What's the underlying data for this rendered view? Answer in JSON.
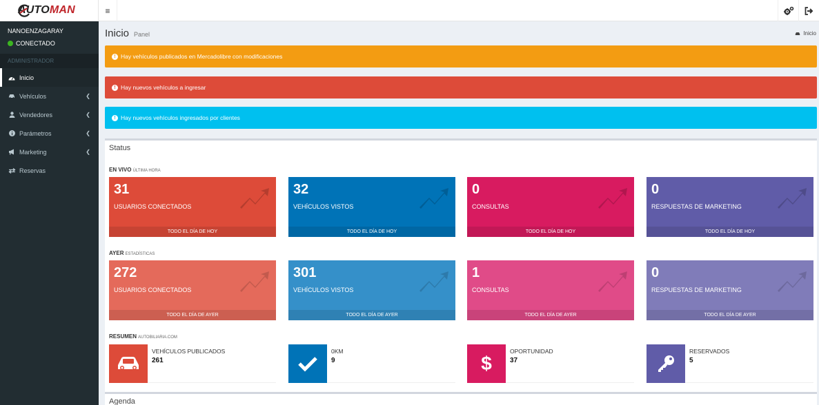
{
  "brand": {
    "logo_prefix": "AUTO",
    "logo_suffix": "MAN"
  },
  "user": {
    "name": "NANOENZAGARAY",
    "status": "CONECTADO",
    "status_color": "#3cb521"
  },
  "sidebar": {
    "header": "ADMINISTRADOR",
    "items": [
      {
        "label": "Inicio",
        "icon": "dashboard-icon"
      },
      {
        "label": "Vehículos",
        "icon": "car-icon"
      },
      {
        "label": "Vendedores",
        "icon": "user-icon"
      },
      {
        "label": "Parámetros",
        "icon": "info-icon"
      },
      {
        "label": "Marketing",
        "icon": "bullhorn-icon"
      },
      {
        "label": "Reservas",
        "icon": "exchange-icon"
      }
    ]
  },
  "page": {
    "title": "Inicio",
    "subtitle": "Panel",
    "breadcrumb": "Inicio"
  },
  "alerts": [
    {
      "text": "Hay vehículos publicados en Mercadolibre con modificaciones",
      "color": "#f39c12"
    },
    {
      "text": "Hay nuevos vehículos a ingresar",
      "color": "#dd4b39"
    },
    {
      "text": "Hay nuevos vehículos ingresados por clientes",
      "color": "#00c0ef"
    }
  ],
  "status": {
    "title": "Status",
    "live": {
      "label": "EN VIVO",
      "sub": "ÚLTIMA HORA",
      "tiles": [
        {
          "value": "31",
          "label": "USUARIOS CONECTADOS",
          "footer": "TODO EL DÍA DE HOY",
          "color": "#dd4b39"
        },
        {
          "value": "32",
          "label": "VEHÍCULOS VISTOS",
          "footer": "TODO EL DÍA DE HOY",
          "color": "#0073b7"
        },
        {
          "value": "0",
          "label": "CONSULTAS",
          "footer": "TODO EL DÍA DE HOY",
          "color": "#d81b60"
        },
        {
          "value": "0",
          "label": "RESPUESTAS DE MARKETING",
          "footer": "TODO EL DÍA DE HOY",
          "color": "#605ca8"
        }
      ]
    },
    "yesterday": {
      "label": "AYER",
      "sub": "ESTADÍSTICAS",
      "tiles": [
        {
          "value": "272",
          "label": "USUARIOS CONECTADOS",
          "footer": "TODO EL DÍA DE AYER",
          "color": "#e46a5b"
        },
        {
          "value": "301",
          "label": "VEHÍCULOS VISTOS",
          "footer": "TODO EL DÍA DE AYER",
          "color": "#3590c9"
        },
        {
          "value": "1",
          "label": "CONSULTAS",
          "footer": "TODO EL DÍA DE AYER",
          "color": "#e04b88"
        },
        {
          "value": "0",
          "label": "RESPUESTAS DE MARKETING",
          "footer": "TODO EL DÍA DE AYER",
          "color": "#807cb9"
        }
      ]
    },
    "summary": {
      "label": "RESUMEN",
      "sub": "AUTOBILIARIA.COM",
      "boxes": [
        {
          "label": "VEHÍCULOS PUBLICADOS",
          "value": "261",
          "icon": "car-icon",
          "color": "#dd4b39"
        },
        {
          "label": "0KM",
          "value": "9",
          "icon": "check-icon",
          "color": "#0073b7"
        },
        {
          "label": "OPORTUNIDAD",
          "value": "37",
          "icon": "dollar-icon",
          "color": "#d81b60"
        },
        {
          "label": "RESERVADOS",
          "value": "5",
          "icon": "key-icon",
          "color": "#605ca8"
        }
      ]
    }
  },
  "agenda": {
    "title": "Agenda"
  }
}
